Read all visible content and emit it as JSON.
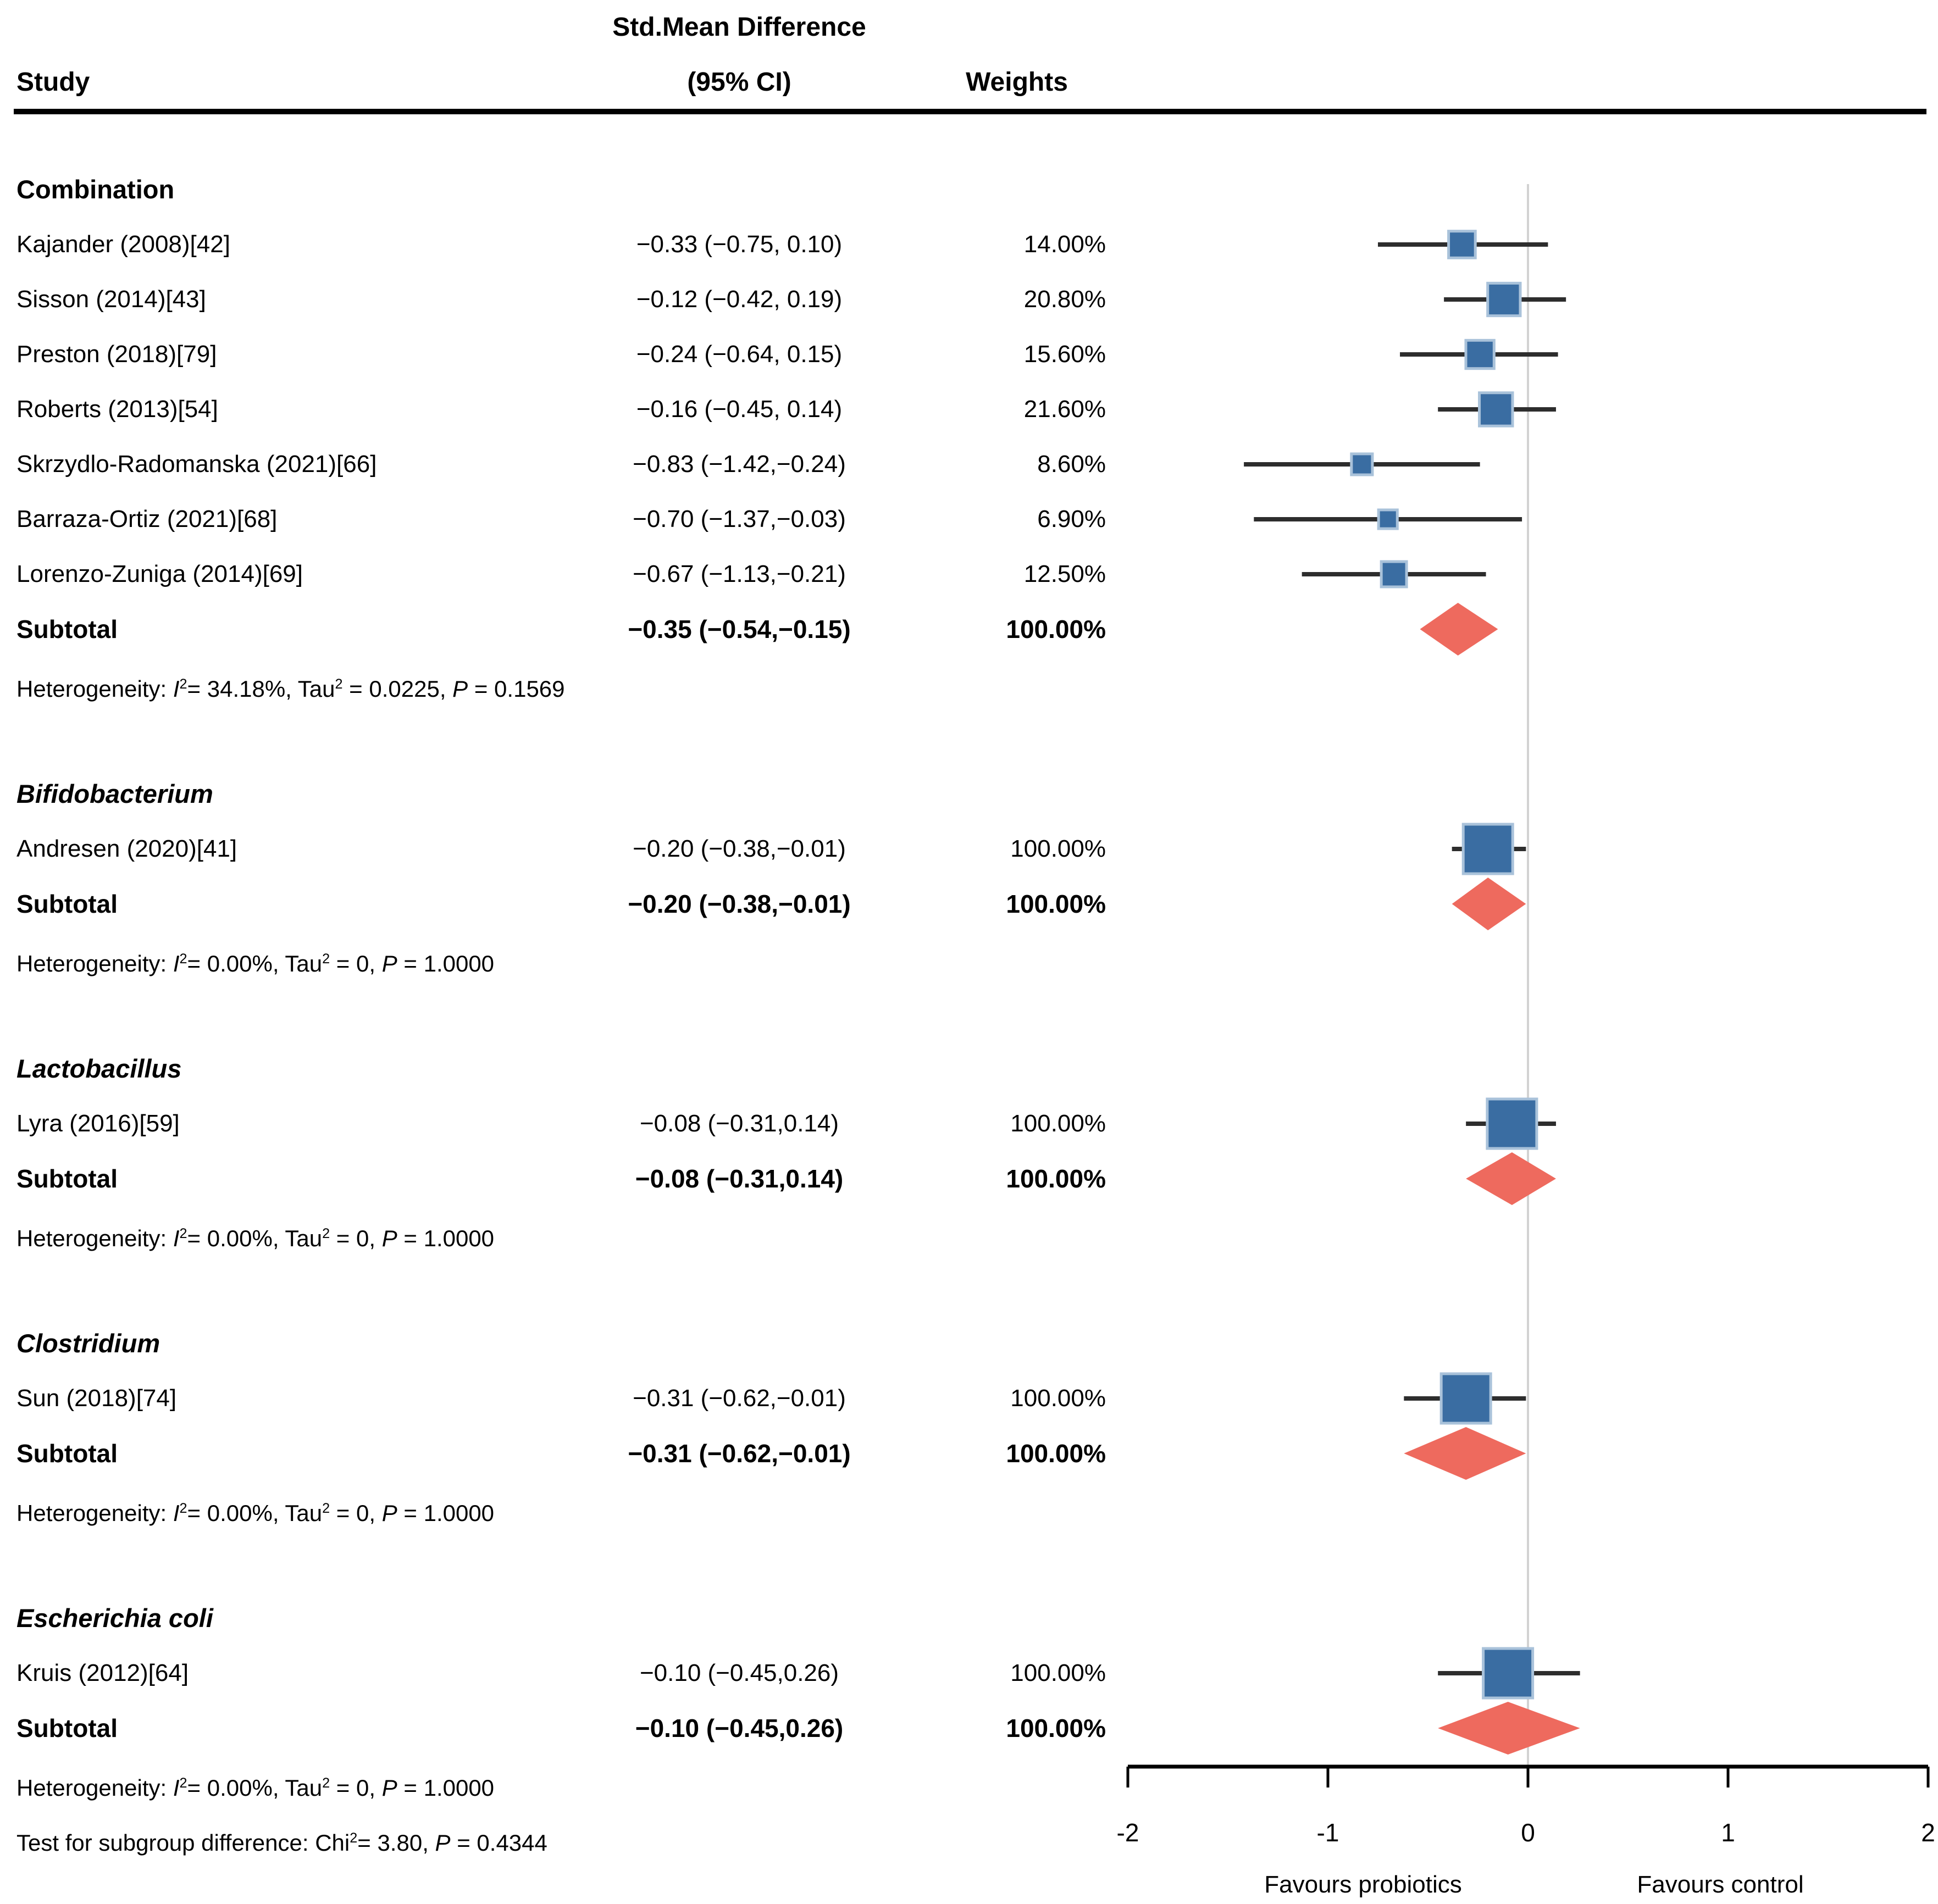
{
  "header": {
    "study": "Study",
    "effect_line1": "Std.Mean Difference",
    "effect_line2": "(95% CI)",
    "weights": "Weights"
  },
  "colors": {
    "square": "#3a6da2",
    "square_halo": "#a9c2da",
    "diamond": "#ee6a5e",
    "ci_line": "#2d2d2d",
    "zero_line": "#d2d2d2",
    "axis": "#000000",
    "text": "#000000"
  },
  "chart_data": {
    "type": "scatter",
    "variant": "forest-plot",
    "effect_measure": "Std.Mean Difference",
    "x_axis": {
      "min": -2,
      "max": 2,
      "ticks": [
        -2,
        -1,
        0,
        1,
        2
      ],
      "tick_labels": [
        "-2",
        "-1",
        "0",
        "1",
        "2"
      ],
      "zero_reference_line": 0,
      "left_annotation": "Favours probiotics",
      "right_annotation": "Favours control"
    },
    "groups": [
      {
        "name": "Combination",
        "italic": false,
        "studies": [
          {
            "label": "Kajander (2008)[42]",
            "ci_text": "−0.33 (−0.75, 0.10)",
            "weight_text": "14.00%",
            "est": -0.33,
            "ci": [
              -0.75,
              0.1
            ],
            "weight": 14.0
          },
          {
            "label": "Sisson (2014)[43]",
            "ci_text": "−0.12 (−0.42, 0.19)",
            "weight_text": "20.80%",
            "est": -0.12,
            "ci": [
              -0.42,
              0.19
            ],
            "weight": 20.8
          },
          {
            "label": "Preston (2018)[79]",
            "ci_text": "−0.24 (−0.64, 0.15)",
            "weight_text": "15.60%",
            "est": -0.24,
            "ci": [
              -0.64,
              0.15
            ],
            "weight": 15.6
          },
          {
            "label": "Roberts (2013)[54]",
            "ci_text": "−0.16 (−0.45, 0.14)",
            "weight_text": "21.60%",
            "est": -0.16,
            "ci": [
              -0.45,
              0.14
            ],
            "weight": 21.6
          },
          {
            "label": "Skrzydlo-Radomanska (2021)[66]",
            "ci_text": "−0.83 (−1.42,−0.24)",
            "weight_text": "8.60%",
            "est": -0.83,
            "ci": [
              -1.42,
              -0.24
            ],
            "weight": 8.6
          },
          {
            "label": "Barraza-Ortiz (2021)[68]",
            "ci_text": "−0.70 (−1.37,−0.03)",
            "weight_text": "6.90%",
            "est": -0.7,
            "ci": [
              -1.37,
              -0.03
            ],
            "weight": 6.9
          },
          {
            "label": "Lorenzo-Zuniga (2014)[69]",
            "ci_text": "−0.67 (−1.13,−0.21)",
            "weight_text": "12.50%",
            "est": -0.67,
            "ci": [
              -1.13,
              -0.21
            ],
            "weight": 12.5
          }
        ],
        "subtotal": {
          "label": "Subtotal",
          "ci_text": "−0.35 (−0.54,−0.15)",
          "weight_text": "100.00%",
          "est": -0.35,
          "ci": [
            -0.54,
            -0.15
          ]
        },
        "heterogeneity": [
          {
            "t": "Heterogeneity: "
          },
          {
            "t": "I",
            "it": true
          },
          {
            "t": "2",
            "sup": true
          },
          {
            "t": "= 34.18%, Tau"
          },
          {
            "t": "2",
            "sup": true
          },
          {
            "t": " = 0.0225, "
          },
          {
            "t": "P",
            "it": true
          },
          {
            "t": " = 0.1569"
          }
        ]
      },
      {
        "name": "Bifidobacterium",
        "italic": true,
        "studies": [
          {
            "label": "Andresen (2020)[41]",
            "ci_text": "−0.20 (−0.38,−0.01)",
            "weight_text": "100.00%",
            "est": -0.2,
            "ci": [
              -0.38,
              -0.01
            ],
            "weight": 100.0
          }
        ],
        "subtotal": {
          "label": "Subtotal",
          "ci_text": "−0.20 (−0.38,−0.01)",
          "weight_text": "100.00%",
          "est": -0.2,
          "ci": [
            -0.38,
            -0.01
          ]
        },
        "heterogeneity": [
          {
            "t": "Heterogeneity: "
          },
          {
            "t": "I",
            "it": true
          },
          {
            "t": "2",
            "sup": true
          },
          {
            "t": "= 0.00%, Tau"
          },
          {
            "t": "2",
            "sup": true
          },
          {
            "t": " = 0, "
          },
          {
            "t": "P",
            "it": true
          },
          {
            "t": " = 1.0000"
          }
        ]
      },
      {
        "name": "Lactobacillus",
        "italic": true,
        "studies": [
          {
            "label": "Lyra (2016)[59]",
            "ci_text": "−0.08 (−0.31,0.14)",
            "weight_text": "100.00%",
            "est": -0.08,
            "ci": [
              -0.31,
              0.14
            ],
            "weight": 100.0
          }
        ],
        "subtotal": {
          "label": "Subtotal",
          "ci_text": "−0.08 (−0.31,0.14)",
          "weight_text": "100.00%",
          "est": -0.08,
          "ci": [
            -0.31,
            0.14
          ]
        },
        "heterogeneity": [
          {
            "t": "Heterogeneity: "
          },
          {
            "t": "I",
            "it": true
          },
          {
            "t": "2",
            "sup": true
          },
          {
            "t": "= 0.00%, Tau"
          },
          {
            "t": "2",
            "sup": true
          },
          {
            "t": " = 0, "
          },
          {
            "t": "P",
            "it": true
          },
          {
            "t": " = 1.0000"
          }
        ]
      },
      {
        "name": "Clostridium",
        "italic": true,
        "studies": [
          {
            "label": "Sun (2018)[74]",
            "ci_text": "−0.31 (−0.62,−0.01)",
            "weight_text": "100.00%",
            "est": -0.31,
            "ci": [
              -0.62,
              -0.01
            ],
            "weight": 100.0
          }
        ],
        "subtotal": {
          "label": "Subtotal",
          "ci_text": "−0.31 (−0.62,−0.01)",
          "weight_text": "100.00%",
          "est": -0.31,
          "ci": [
            -0.62,
            -0.01
          ]
        },
        "heterogeneity": [
          {
            "t": "Heterogeneity: "
          },
          {
            "t": "I",
            "it": true
          },
          {
            "t": "2",
            "sup": true
          },
          {
            "t": "= 0.00%, Tau"
          },
          {
            "t": "2",
            "sup": true
          },
          {
            "t": " = 0, "
          },
          {
            "t": "P",
            "it": true
          },
          {
            "t": " = 1.0000"
          }
        ]
      },
      {
        "name": "Escherichia coli",
        "italic": true,
        "studies": [
          {
            "label": "Kruis (2012)[64]",
            "ci_text": "−0.10 (−0.45,0.26)",
            "weight_text": "100.00%",
            "est": -0.1,
            "ci": [
              -0.45,
              0.26
            ],
            "weight": 100.0
          }
        ],
        "subtotal": {
          "label": "Subtotal",
          "ci_text": "−0.10 (−0.45,0.26)",
          "weight_text": "100.00%",
          "est": -0.1,
          "ci": [
            -0.45,
            0.26
          ]
        },
        "heterogeneity": [
          {
            "t": "Heterogeneity: "
          },
          {
            "t": "I",
            "it": true
          },
          {
            "t": "2",
            "sup": true
          },
          {
            "t": "= 0.00%, Tau"
          },
          {
            "t": "2",
            "sup": true
          },
          {
            "t": " = 0, "
          },
          {
            "t": "P",
            "it": true
          },
          {
            "t": " = 1.0000"
          }
        ]
      }
    ]
  },
  "footer": {
    "segments": [
      {
        "t": "Test for subgroup difference: Chi"
      },
      {
        "t": "2",
        "sup": true
      },
      {
        "t": "= 3.80, "
      },
      {
        "t": "P",
        "it": true
      },
      {
        "t": " = 0.4344"
      }
    ]
  }
}
